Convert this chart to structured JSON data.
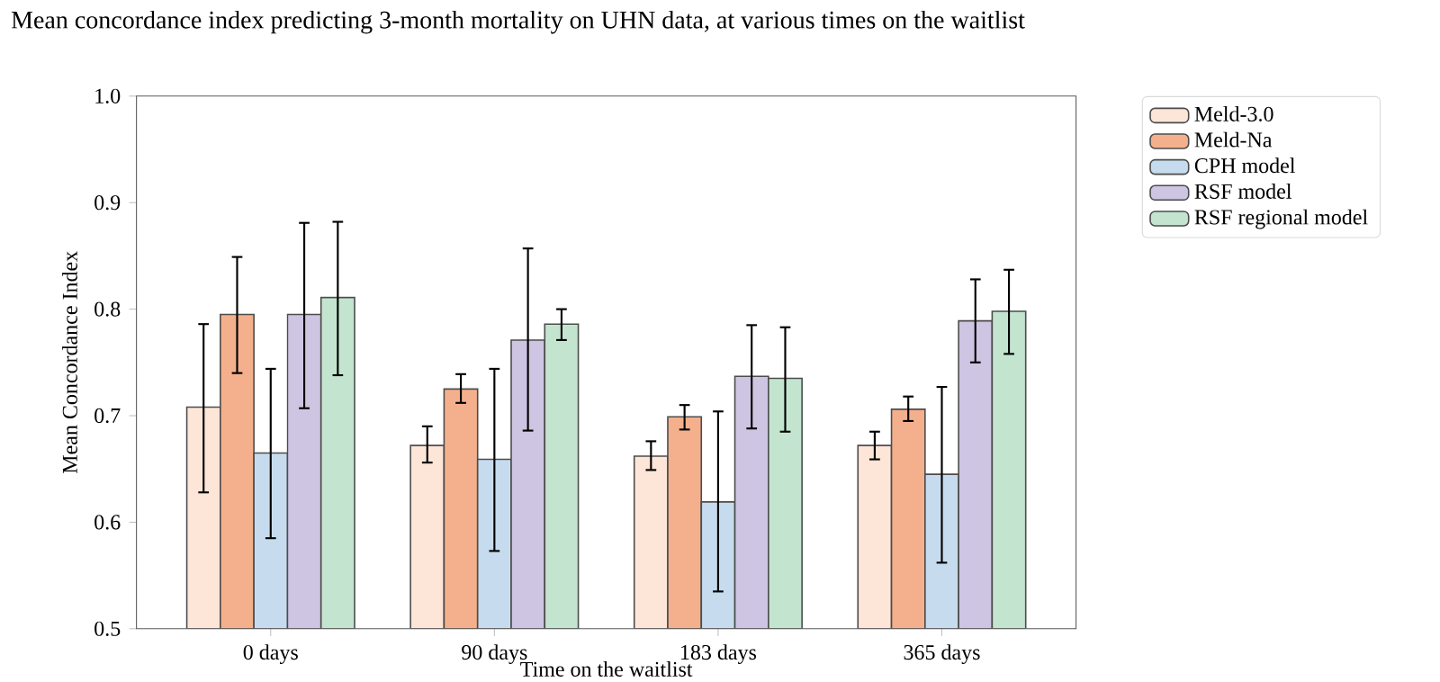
{
  "chart_data": {
    "type": "bar",
    "title": "Mean concordance index predicting 3-month mortality on UHN data, at various times on the waitlist",
    "xlabel": "Time on the waitlist",
    "ylabel": "Mean Concordance Index",
    "categories": [
      "0 days",
      "90 days",
      "183 days",
      "365 days"
    ],
    "series": [
      {
        "name": "Meld-3.0",
        "color": "#fde5d8",
        "values": [
          0.708,
          0.672,
          0.662,
          0.672
        ],
        "errors": [
          [
            0.628,
            0.786
          ],
          [
            0.656,
            0.69
          ],
          [
            0.649,
            0.676
          ],
          [
            0.659,
            0.685
          ]
        ]
      },
      {
        "name": "Meld-Na",
        "color": "#f4b08c",
        "values": [
          0.795,
          0.725,
          0.699,
          0.706
        ],
        "errors": [
          [
            0.74,
            0.849
          ],
          [
            0.712,
            0.739
          ],
          [
            0.687,
            0.71
          ],
          [
            0.695,
            0.718
          ]
        ]
      },
      {
        "name": "CPH model",
        "color": "#c6dcee",
        "values": [
          0.665,
          0.659,
          0.619,
          0.645
        ],
        "errors": [
          [
            0.585,
            0.744
          ],
          [
            0.573,
            0.744
          ],
          [
            0.535,
            0.704
          ],
          [
            0.562,
            0.727
          ]
        ]
      },
      {
        "name": "RSF model",
        "color": "#cdc5e2",
        "values": [
          0.795,
          0.771,
          0.737,
          0.789
        ],
        "errors": [
          [
            0.707,
            0.881
          ],
          [
            0.686,
            0.857
          ],
          [
            0.688,
            0.785
          ],
          [
            0.75,
            0.828
          ]
        ]
      },
      {
        "name": "RSF regional model",
        "color": "#c3e5d0",
        "values": [
          0.811,
          0.786,
          0.735,
          0.798
        ],
        "errors": [
          [
            0.738,
            0.882
          ],
          [
            0.771,
            0.8
          ],
          [
            0.685,
            0.783
          ],
          [
            0.758,
            0.837
          ]
        ]
      }
    ],
    "ylim": [
      0.5,
      1.0
    ],
    "yticks": [
      0.5,
      0.6,
      0.7,
      0.8,
      0.9,
      {
        "value": 1.0,
        "label": "1.0"
      }
    ],
    "legend": "right",
    "grid": false
  }
}
